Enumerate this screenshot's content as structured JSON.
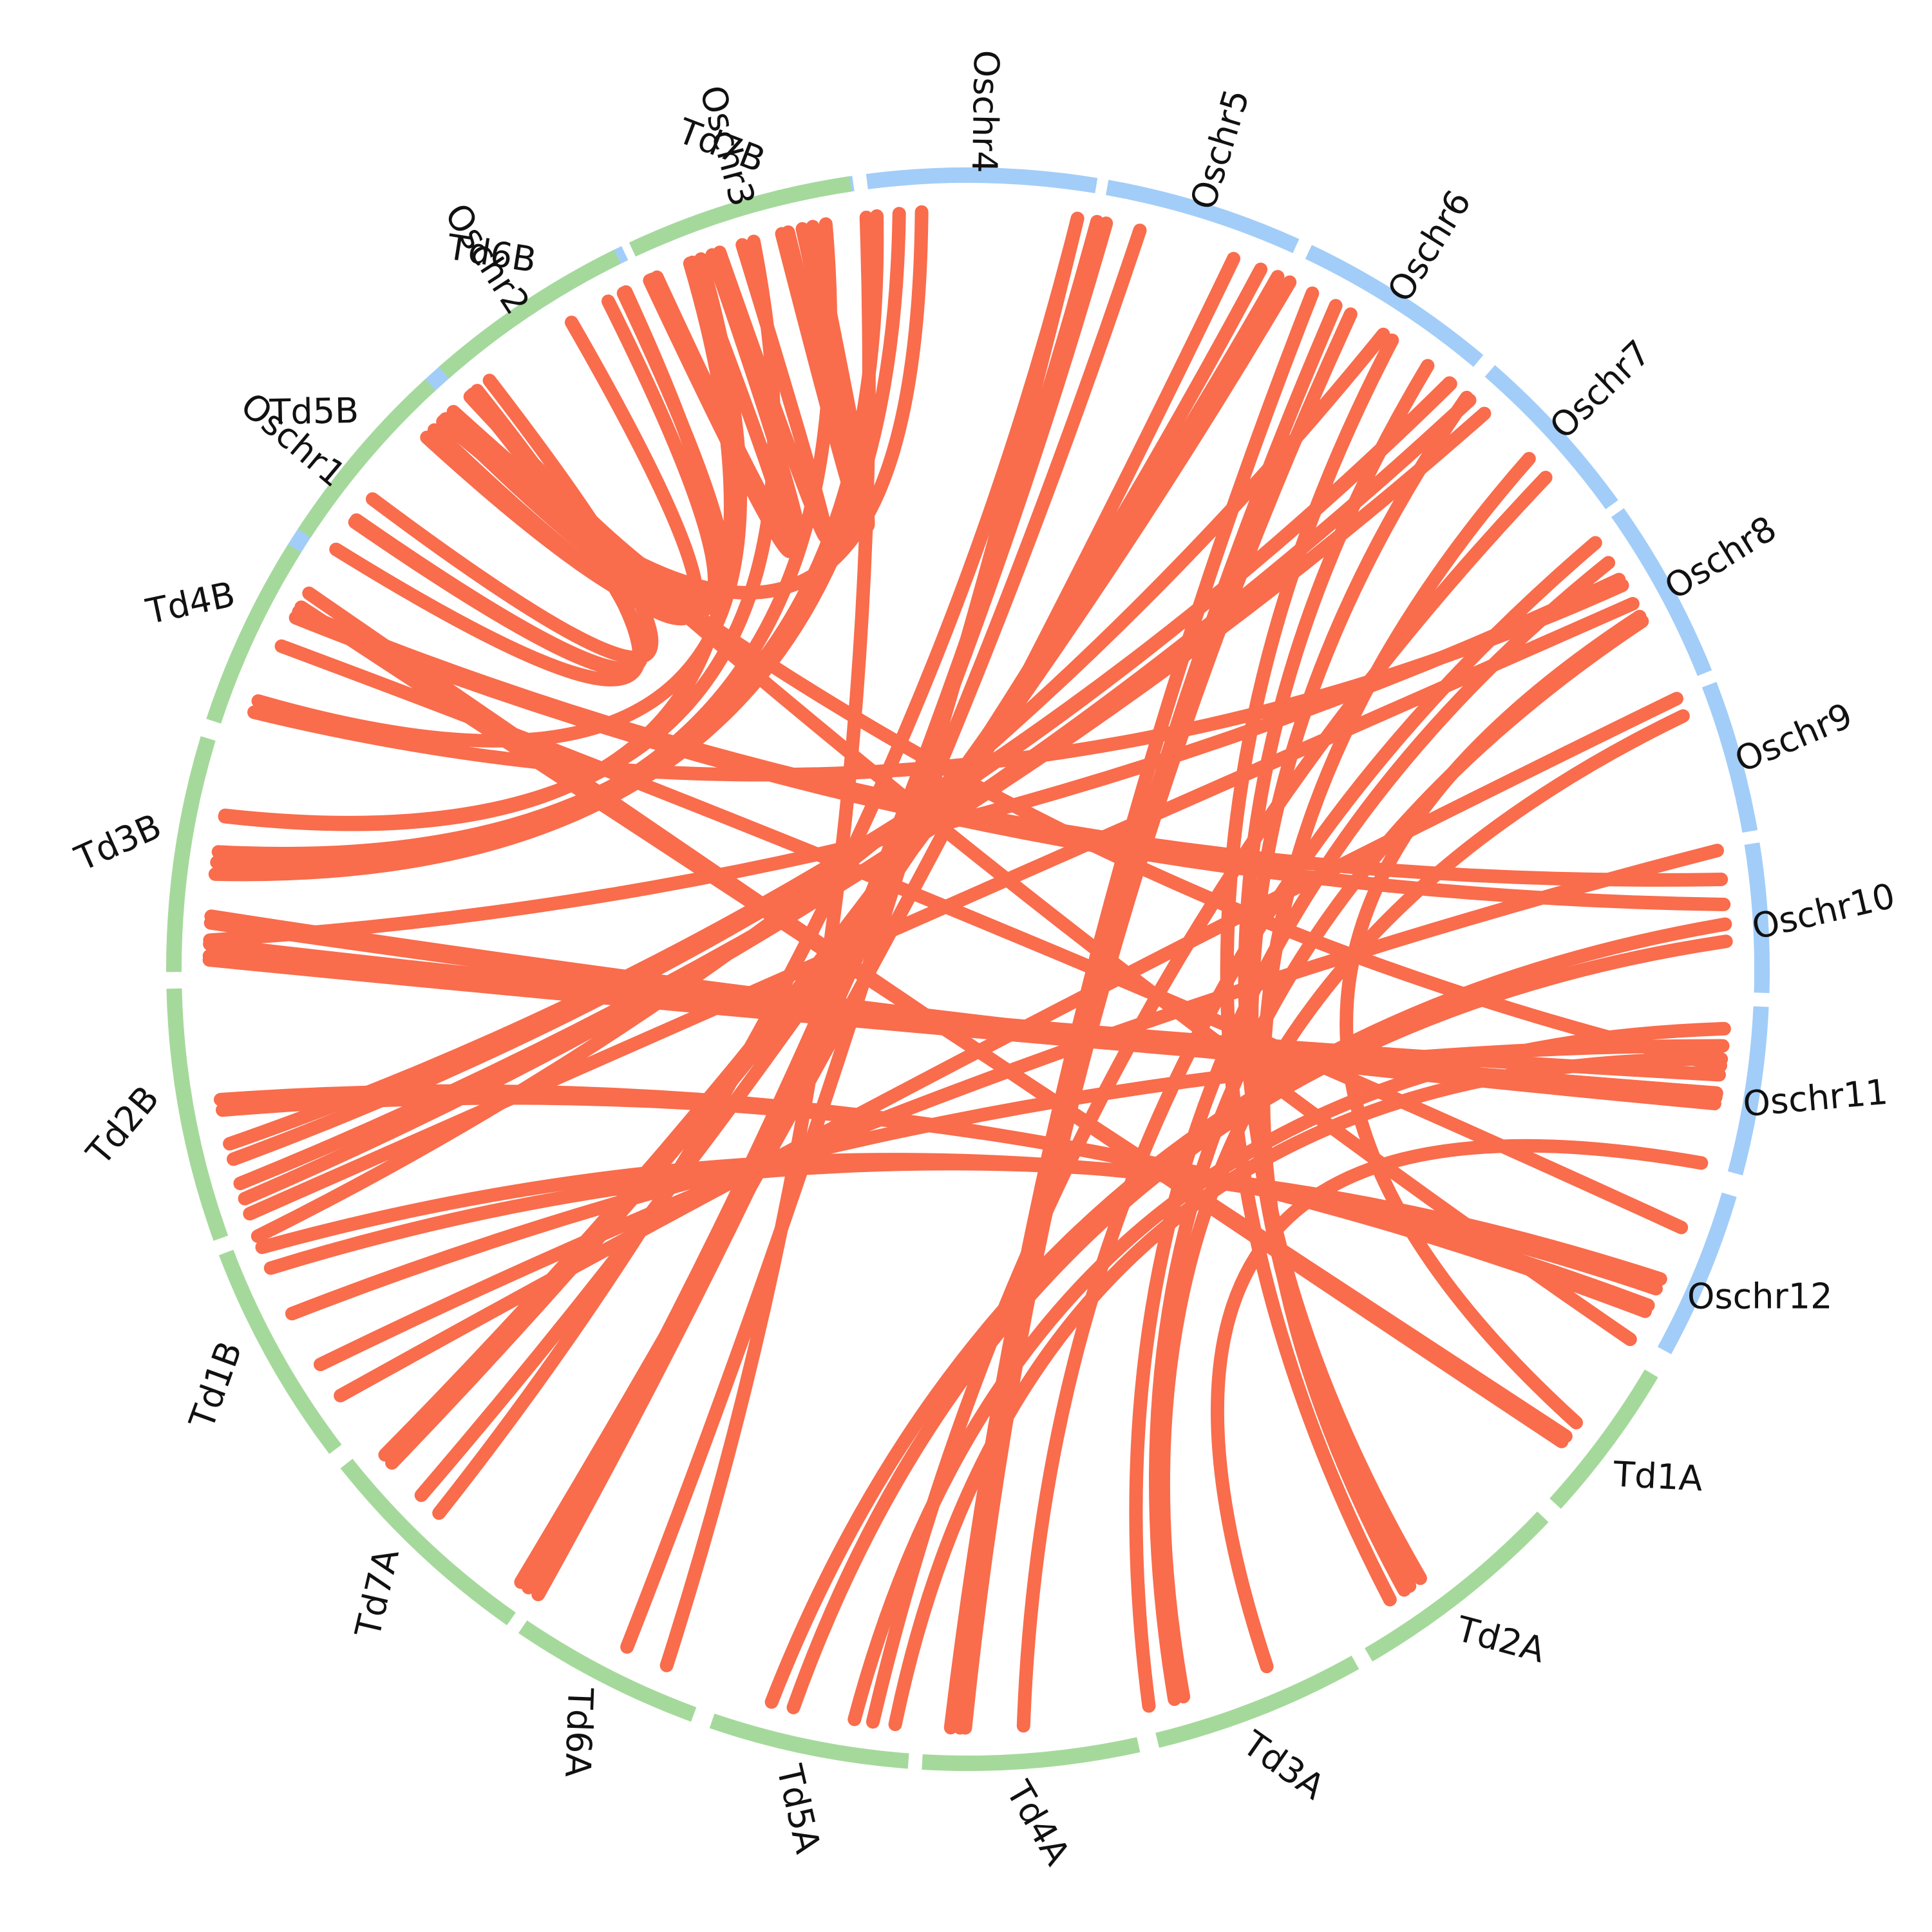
{
  "colors": {
    "rice_track": "#a2cdf8",
    "wheat_track": "#a5d99b",
    "link": "#f96c4c",
    "label": "#111111"
  },
  "chromosomes": [
    {
      "id": "Oschr1",
      "group": "rice",
      "start": 210.0,
      "end": 225.9,
      "label_rot": 40
    },
    {
      "id": "Oschr2",
      "group": "rice",
      "start": 227.1,
      "end": 244.4,
      "label_rot": 57
    },
    {
      "id": "Oschr3",
      "group": "rice",
      "start": 245.4,
      "end": 261.7,
      "label_rot": 75
    },
    {
      "id": "Oschr4",
      "group": "rice",
      "start": 262.7,
      "end": 279.3,
      "label_rot": 91
    },
    {
      "id": "Oschr5",
      "group": "rice",
      "start": 280.1,
      "end": 294.4,
      "label_rot": -73
    },
    {
      "id": "Oschr6",
      "group": "rice",
      "start": 295.4,
      "end": 310.0,
      "label_rot": -58
    },
    {
      "id": "Oschr7",
      "group": "rice",
      "start": 311.1,
      "end": 324.2,
      "label_rot": -44
    },
    {
      "id": "Oschr8",
      "group": "rice",
      "start": 324.9,
      "end": 338.1,
      "label_rot": -32
    },
    {
      "id": "Oschr9",
      "group": "rice",
      "start": 339.0,
      "end": 350.0,
      "label_rot": -23
    },
    {
      "id": "Oschr10",
      "group": "rice",
      "start": 350.9,
      "end": 361.7,
      "label_rot": -13
    },
    {
      "id": "Oschr11",
      "group": "rice",
      "start": 362.7,
      "end": 374.9,
      "label_rot": -5
    },
    {
      "id": "Oschr12",
      "group": "rice",
      "start": 376.5,
      "end": 388.7,
      "label_rot": 0
    },
    {
      "id": "Td1A",
      "group": "wheat",
      "start": 390.6,
      "end": 402.3,
      "label_rot": 3
    },
    {
      "id": "Td2A",
      "group": "wheat",
      "start": 403.6,
      "end": 419.7,
      "label_rot": 15
    },
    {
      "id": "Td3A",
      "group": "wheat",
      "start": 420.8,
      "end": 436.2,
      "label_rot": 35
    },
    {
      "id": "Td4A",
      "group": "wheat",
      "start": 437.6,
      "end": 453.3,
      "label_rot": 60
    },
    {
      "id": "Td5A",
      "group": "wheat",
      "start": 454.3,
      "end": 468.8,
      "label_rot": 77
    },
    {
      "id": "Td6A",
      "group": "wheat",
      "start": 470.2,
      "end": 484.1,
      "label_rot": 92
    },
    {
      "id": "Td7A",
      "group": "wheat",
      "start": 485.1,
      "end": 501.5,
      "label_rot": -77
    },
    {
      "id": "Td1B",
      "group": "wheat",
      "start": 502.8,
      "end": 519.1,
      "label_rot": -70
    },
    {
      "id": "Td2B",
      "group": "wheat",
      "start": 520.2,
      "end": 538.6,
      "label_rot": -50
    },
    {
      "id": "Td3B",
      "group": "wheat",
      "start": 539.8,
      "end": 556.9,
      "label_rot": -24
    },
    {
      "id": "Td4B",
      "group": "wheat",
      "start": 558.2,
      "end": 572.0,
      "label_rot": -12
    },
    {
      "id": "Td5B",
      "group": "wheat",
      "start": 573.3,
      "end": 587.4,
      "label_rot": -1
    },
    {
      "id": "Td6B",
      "group": "wheat",
      "start": 588.7,
      "end": 603.8,
      "label_rot": 9
    },
    {
      "id": "Td7B",
      "group": "wheat",
      "start": 605.0,
      "end": 621.5,
      "label_rot": 21
    }
  ],
  "links": [
    [
      368.0,
      541.9
    ],
    [
      369.4,
      541.0
    ],
    [
      369.7,
      544.0
    ],
    [
      370.2,
      543.5
    ],
    [
      374.8,
      426.8
    ],
    [
      384.1,
      516.8
    ],
    [
      384.9,
      518.5
    ],
    [
      386.3,
      529.3
    ],
    [
      386.8,
      530.1
    ],
    [
      389.2,
      587.3
    ],
    [
      396.7,
      332.3
    ],
    [
      398.0,
      568.5
    ],
    [
      398.5,
      569.7
    ],
    [
      413.4,
      307.3
    ],
    [
      414.4,
      311.1
    ],
    [
      414.9,
      317.7
    ],
    [
      416.2,
      304.0
    ],
    [
      433.5,
      340.5
    ],
    [
      434.2,
      332.7
    ],
    [
      436.2,
      327.6
    ],
    [
      445.8,
      325.8
    ],
    [
      450.2,
      299.0
    ],
    [
      451.3,
      297.0
    ],
    [
      450.6,
      300.3
    ],
    [
      455.5,
      366.8
    ],
    [
      463.3,
      357.9
    ],
    [
      458.6,
      364.5
    ],
    [
      465.0,
      356.6
    ],
    [
      473.4,
      262.3
    ],
    [
      476.7,
      278.3
    ],
    [
      484.5,
      279.8
    ],
    [
      485.4,
      280.5
    ],
    [
      486.1,
      290.5
    ],
    [
      484.5,
      283.1
    ],
    [
      494.2,
      278.3
    ],
    [
      496.1,
      292.7
    ],
    [
      499.4,
      295.1
    ],
    [
      500.2,
      294.1
    ],
    [
      505.8,
      339.1
    ],
    [
      508.6,
      351.0
    ],
    [
      513.0,
      365.8
    ],
    [
      521.2,
      331.2
    ],
    [
      523.6,
      312.9
    ],
    [
      525.5,
      309.4
    ],
    [
      526.7,
      309.5
    ],
    [
      540.7,
      369.4
    ],
    [
      547.2,
      264.8
    ],
    [
      548.1,
      259.2
    ],
    [
      548.9,
      263.1
    ],
    [
      551.6,
      248.5
    ],
    [
      551.7,
      253.6
    ],
    [
      560.7,
      249.4
    ],
    [
      567.6,
      355.1
    ],
    [
      568.1,
      353.2
    ],
    [
      586.2,
      367.3
    ],
    [
      586.3,
      266.5
    ],
    [
      589.2,
      216.1
    ],
    [
      589.7,
      213.6
    ],
    [
      589.3,
      216.3
    ],
    [
      590.9,
      218.3
    ],
    [
      603.0,
      229.0
    ],
    [
      601.7,
      226.5
    ],
    [
      603.2,
      224.5
    ],
    [
      608.7,
      245.2
    ],
    [
      610.3,
      245.8
    ],
    [
      610.9,
      252.7
    ],
    [
      617.4,
      255.8
    ],
    [
      618.2,
      256.3
    ],
    [
      559.8,
      329.6
    ],
    [
      457.2,
      319.6
    ],
    [
      522.4,
      311.4
    ],
    [
      605.4,
      248.7
    ],
    [
      519.4,
      303.2
    ],
    [
      585.3,
      238.5
    ],
    [
      542.2,
      329.1
    ],
    [
      379.9,
      565.2
    ]
  ]
}
